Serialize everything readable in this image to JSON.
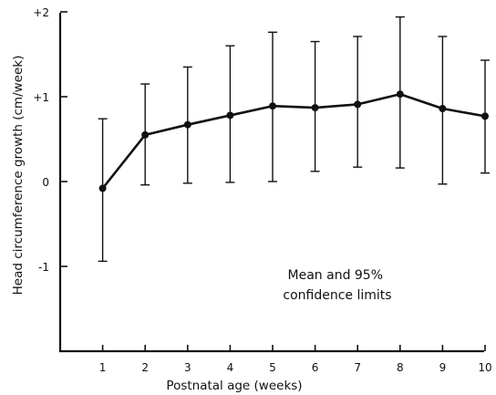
{
  "chart_data": {
    "type": "line",
    "xlabel": "Postnatal age (weeks)",
    "ylabel": "Head circumference growth (cm/week)",
    "x": [
      1,
      2,
      3,
      4,
      5,
      6,
      7,
      8,
      9,
      10
    ],
    "xlim": [
      0,
      10
    ],
    "ylim": [
      -2,
      2
    ],
    "x_ticks": [
      "1",
      "2",
      "3",
      "4",
      "5",
      "6",
      "7",
      "8",
      "9",
      "10"
    ],
    "y_ticks": [
      {
        "value": 2,
        "label": "+2"
      },
      {
        "value": 1,
        "label": "+1"
      },
      {
        "value": 0,
        "label": "0"
      },
      {
        "value": -1,
        "label": "-1"
      }
    ],
    "series": [
      {
        "mean": [
          -0.08,
          0.55,
          0.67,
          0.78,
          0.89,
          0.87,
          0.91,
          1.03,
          0.86,
          0.77
        ],
        "lower": [
          -0.94,
          -0.04,
          -0.02,
          -0.01,
          0.0,
          0.12,
          0.17,
          0.16,
          -0.03,
          0.1
        ],
        "upper": [
          0.74,
          1.15,
          1.35,
          1.6,
          1.76,
          1.65,
          1.71,
          1.94,
          1.71,
          1.43
        ]
      }
    ],
    "annotation": [
      "Mean and 95%",
      "confidence limits"
    ],
    "grid": false,
    "color": "#111111"
  }
}
